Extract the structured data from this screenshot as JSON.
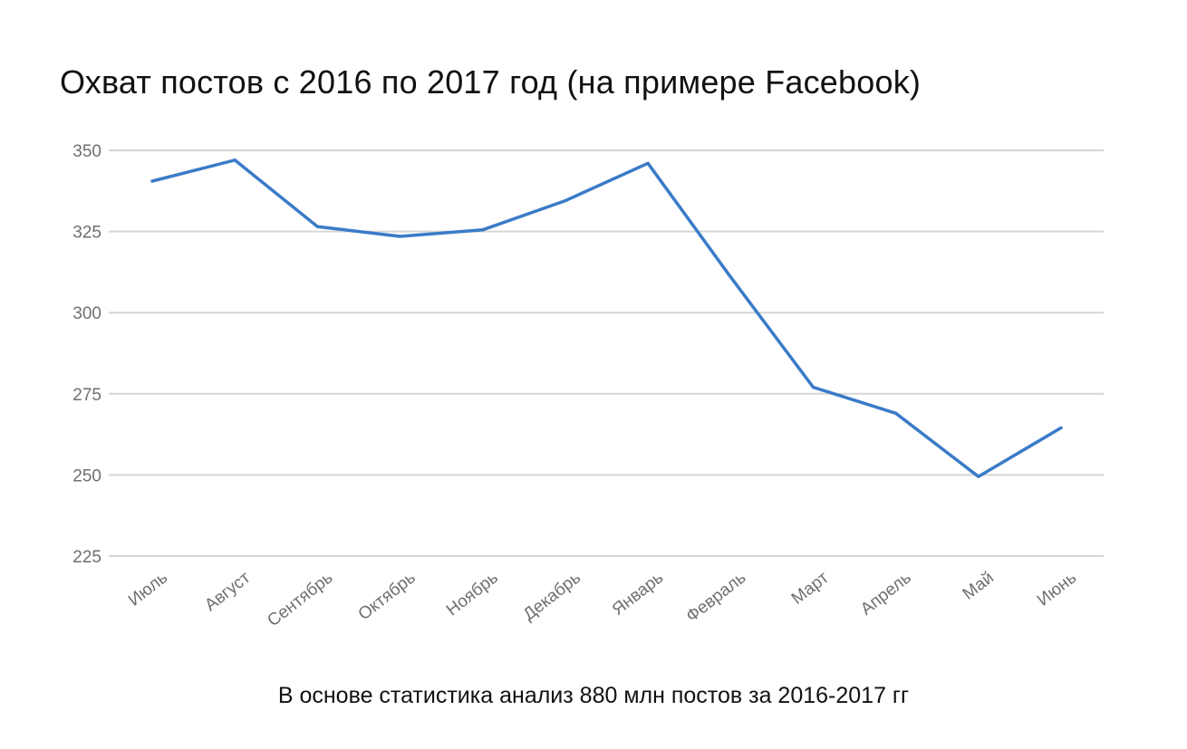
{
  "chart_data": {
    "type": "line",
    "title": "Охват постов с 2016 по 2017 год (на примере Facebook)",
    "footnote": "В основе статистика анализ 880 млн постов за 2016-2017 гг",
    "xlabel": "",
    "ylabel": "",
    "categories": [
      "Июль",
      "Август",
      "Сентябрь",
      "Октябрь",
      "Ноябрь",
      "Декабрь",
      "Январь",
      "Февраль",
      "Март",
      "Апрель",
      "Май",
      "Июнь"
    ],
    "series": [
      {
        "values": [
          340.5,
          347,
          326.5,
          323.5,
          325.5,
          334.5,
          346,
          311,
          277,
          269,
          249.5,
          264.5
        ],
        "color": "#3a7bc8"
      }
    ],
    "ylim": [
      225,
      350
    ],
    "yticks": [
      350,
      325,
      300,
      275,
      250,
      225
    ],
    "grid": true,
    "legend": "none"
  }
}
